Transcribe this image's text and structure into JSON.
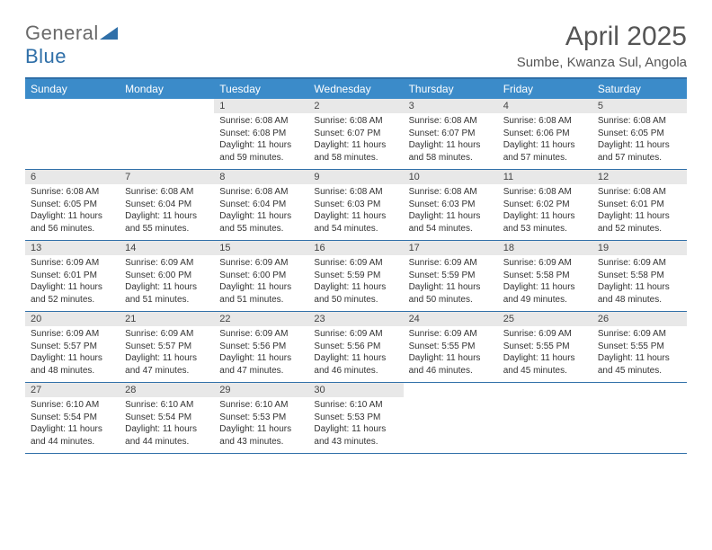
{
  "brand": {
    "part1": "General",
    "part2": "Blue"
  },
  "title": "April 2025",
  "location": "Sumbe, Kwanza Sul, Angola",
  "colors": {
    "header_bar": "#3b8bc9",
    "accent_line": "#2f6fa8",
    "daynum_bg": "#e8e8e8",
    "text": "#333333",
    "title_text": "#555555",
    "logo_gray": "#6a6a6a",
    "white": "#ffffff"
  },
  "daysOfWeek": [
    "Sunday",
    "Monday",
    "Tuesday",
    "Wednesday",
    "Thursday",
    "Friday",
    "Saturday"
  ],
  "calendar": {
    "leadingBlanks": 2,
    "days": [
      {
        "n": 1,
        "sunrise": "6:08 AM",
        "sunset": "6:08 PM",
        "daylight": "11 hours and 59 minutes."
      },
      {
        "n": 2,
        "sunrise": "6:08 AM",
        "sunset": "6:07 PM",
        "daylight": "11 hours and 58 minutes."
      },
      {
        "n": 3,
        "sunrise": "6:08 AM",
        "sunset": "6:07 PM",
        "daylight": "11 hours and 58 minutes."
      },
      {
        "n": 4,
        "sunrise": "6:08 AM",
        "sunset": "6:06 PM",
        "daylight": "11 hours and 57 minutes."
      },
      {
        "n": 5,
        "sunrise": "6:08 AM",
        "sunset": "6:05 PM",
        "daylight": "11 hours and 57 minutes."
      },
      {
        "n": 6,
        "sunrise": "6:08 AM",
        "sunset": "6:05 PM",
        "daylight": "11 hours and 56 minutes."
      },
      {
        "n": 7,
        "sunrise": "6:08 AM",
        "sunset": "6:04 PM",
        "daylight": "11 hours and 55 minutes."
      },
      {
        "n": 8,
        "sunrise": "6:08 AM",
        "sunset": "6:04 PM",
        "daylight": "11 hours and 55 minutes."
      },
      {
        "n": 9,
        "sunrise": "6:08 AM",
        "sunset": "6:03 PM",
        "daylight": "11 hours and 54 minutes."
      },
      {
        "n": 10,
        "sunrise": "6:08 AM",
        "sunset": "6:03 PM",
        "daylight": "11 hours and 54 minutes."
      },
      {
        "n": 11,
        "sunrise": "6:08 AM",
        "sunset": "6:02 PM",
        "daylight": "11 hours and 53 minutes."
      },
      {
        "n": 12,
        "sunrise": "6:08 AM",
        "sunset": "6:01 PM",
        "daylight": "11 hours and 52 minutes."
      },
      {
        "n": 13,
        "sunrise": "6:09 AM",
        "sunset": "6:01 PM",
        "daylight": "11 hours and 52 minutes."
      },
      {
        "n": 14,
        "sunrise": "6:09 AM",
        "sunset": "6:00 PM",
        "daylight": "11 hours and 51 minutes."
      },
      {
        "n": 15,
        "sunrise": "6:09 AM",
        "sunset": "6:00 PM",
        "daylight": "11 hours and 51 minutes."
      },
      {
        "n": 16,
        "sunrise": "6:09 AM",
        "sunset": "5:59 PM",
        "daylight": "11 hours and 50 minutes."
      },
      {
        "n": 17,
        "sunrise": "6:09 AM",
        "sunset": "5:59 PM",
        "daylight": "11 hours and 50 minutes."
      },
      {
        "n": 18,
        "sunrise": "6:09 AM",
        "sunset": "5:58 PM",
        "daylight": "11 hours and 49 minutes."
      },
      {
        "n": 19,
        "sunrise": "6:09 AM",
        "sunset": "5:58 PM",
        "daylight": "11 hours and 48 minutes."
      },
      {
        "n": 20,
        "sunrise": "6:09 AM",
        "sunset": "5:57 PM",
        "daylight": "11 hours and 48 minutes."
      },
      {
        "n": 21,
        "sunrise": "6:09 AM",
        "sunset": "5:57 PM",
        "daylight": "11 hours and 47 minutes."
      },
      {
        "n": 22,
        "sunrise": "6:09 AM",
        "sunset": "5:56 PM",
        "daylight": "11 hours and 47 minutes."
      },
      {
        "n": 23,
        "sunrise": "6:09 AM",
        "sunset": "5:56 PM",
        "daylight": "11 hours and 46 minutes."
      },
      {
        "n": 24,
        "sunrise": "6:09 AM",
        "sunset": "5:55 PM",
        "daylight": "11 hours and 46 minutes."
      },
      {
        "n": 25,
        "sunrise": "6:09 AM",
        "sunset": "5:55 PM",
        "daylight": "11 hours and 45 minutes."
      },
      {
        "n": 26,
        "sunrise": "6:09 AM",
        "sunset": "5:55 PM",
        "daylight": "11 hours and 45 minutes."
      },
      {
        "n": 27,
        "sunrise": "6:10 AM",
        "sunset": "5:54 PM",
        "daylight": "11 hours and 44 minutes."
      },
      {
        "n": 28,
        "sunrise": "6:10 AM",
        "sunset": "5:54 PM",
        "daylight": "11 hours and 44 minutes."
      },
      {
        "n": 29,
        "sunrise": "6:10 AM",
        "sunset": "5:53 PM",
        "daylight": "11 hours and 43 minutes."
      },
      {
        "n": 30,
        "sunrise": "6:10 AM",
        "sunset": "5:53 PM",
        "daylight": "11 hours and 43 minutes."
      }
    ]
  },
  "labels": {
    "sunrise": "Sunrise:",
    "sunset": "Sunset:",
    "daylight": "Daylight:"
  }
}
